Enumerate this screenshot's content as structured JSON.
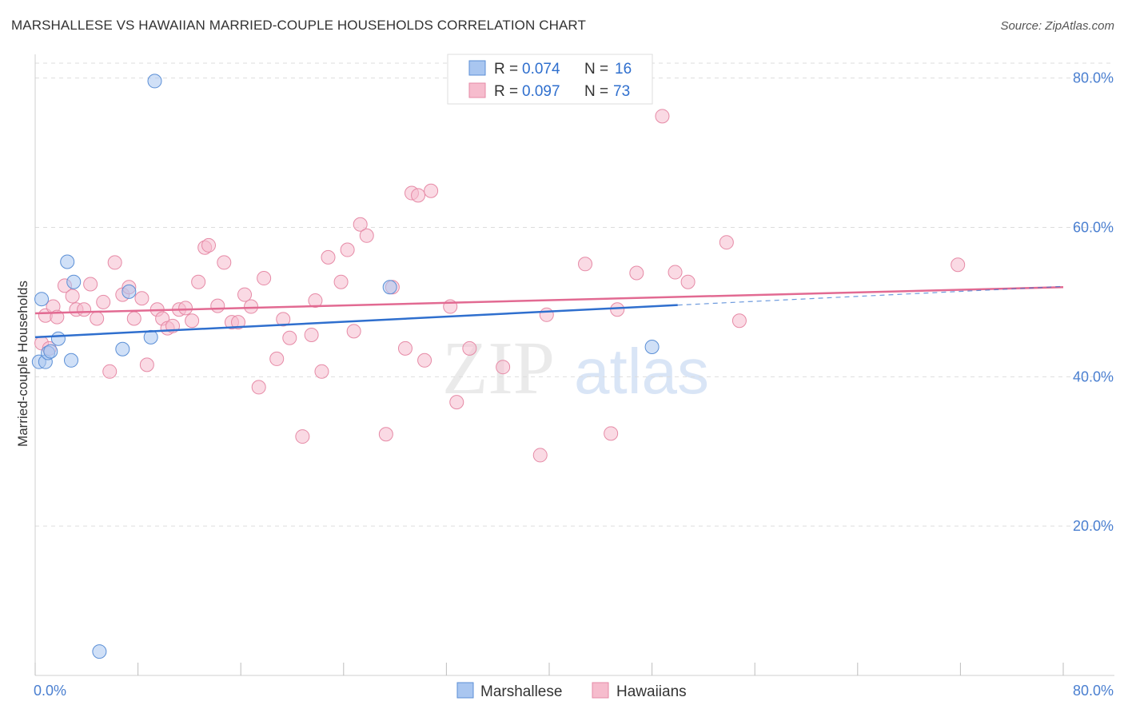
{
  "header": {
    "title": "MARSHALLESE VS HAWAIIAN MARRIED-COUPLE HOUSEHOLDS CORRELATION CHART",
    "source": "Source: ZipAtlas.com"
  },
  "watermark": {
    "zip": "ZIP",
    "atlas": "atlas"
  },
  "colors": {
    "marshallese_fill": "#a9c6f0",
    "marshallese_stroke": "#5b8fd6",
    "marshallese_line": "#2f6fce",
    "hawaiian_fill": "#f6bccd",
    "hawaiian_stroke": "#e68aa6",
    "hawaiian_line": "#e26a92",
    "tick_label": "#4a7fd0",
    "grid": "#dddddd"
  },
  "stats_legend": {
    "rows": [
      {
        "r_label": "R =",
        "r_value": "0.074",
        "n_label": "N =",
        "n_value": "16"
      },
      {
        "r_label": "R =",
        "r_value": "0.097",
        "n_label": "N =",
        "n_value": "73"
      }
    ]
  },
  "chart_data": {
    "type": "scatter",
    "title": "MARSHALLESE VS HAWAIIAN MARRIED-COUPLE HOUSEHOLDS CORRELATION CHART",
    "xlabel": "",
    "ylabel": "Married-couple Households",
    "xlim": [
      0,
      80
    ],
    "ylim": [
      0,
      82
    ],
    "x_tick_labels": [
      "0.0%",
      "80.0%"
    ],
    "y_ticks": [
      20,
      40,
      60,
      80
    ],
    "y_tick_labels": [
      "20.0%",
      "40.0%",
      "60.0%",
      "80.0%"
    ],
    "grid": true,
    "legend": [
      "Marshallese",
      "Hawaiians"
    ],
    "series": [
      {
        "name": "Marshallese",
        "r": 0.074,
        "n": 16,
        "trend": {
          "x0": 0,
          "y0": 45.3,
          "x1": 50,
          "y1": 49.6,
          "dash_to_x": 80,
          "dash_to_y": 52.1
        },
        "points": [
          [
            0.3,
            42.0
          ],
          [
            0.5,
            50.4
          ],
          [
            0.8,
            42.0
          ],
          [
            1.0,
            43.2
          ],
          [
            1.2,
            43.4
          ],
          [
            1.8,
            45.1
          ],
          [
            2.5,
            55.4
          ],
          [
            2.8,
            42.2
          ],
          [
            3.0,
            52.7
          ],
          [
            5.0,
            3.2
          ],
          [
            6.8,
            43.7
          ],
          [
            7.3,
            51.4
          ],
          [
            9.0,
            45.3
          ],
          [
            9.3,
            79.6
          ],
          [
            27.6,
            52.0
          ],
          [
            48.0,
            44.0
          ]
        ]
      },
      {
        "name": "Hawaiians",
        "r": 0.097,
        "n": 73,
        "trend": {
          "x0": 0,
          "y0": 48.5,
          "x1": 80,
          "y1": 52.0
        },
        "points": [
          [
            0.5,
            44.5
          ],
          [
            0.8,
            48.2
          ],
          [
            1.1,
            43.8
          ],
          [
            1.4,
            49.4
          ],
          [
            1.7,
            48.0
          ],
          [
            2.3,
            52.2
          ],
          [
            2.9,
            50.8
          ],
          [
            3.2,
            49.0
          ],
          [
            3.8,
            49.0
          ],
          [
            4.3,
            52.4
          ],
          [
            4.8,
            47.8
          ],
          [
            5.3,
            50.0
          ],
          [
            5.8,
            40.7
          ],
          [
            6.2,
            55.3
          ],
          [
            6.8,
            51.0
          ],
          [
            7.3,
            52.0
          ],
          [
            7.7,
            47.8
          ],
          [
            8.3,
            50.5
          ],
          [
            8.7,
            41.6
          ],
          [
            9.5,
            49.0
          ],
          [
            9.9,
            47.8
          ],
          [
            10.3,
            46.5
          ],
          [
            10.7,
            46.8
          ],
          [
            11.2,
            49.0
          ],
          [
            11.7,
            49.2
          ],
          [
            12.2,
            47.5
          ],
          [
            12.7,
            52.7
          ],
          [
            13.2,
            57.3
          ],
          [
            13.5,
            57.6
          ],
          [
            14.2,
            49.5
          ],
          [
            14.7,
            55.3
          ],
          [
            15.3,
            47.3
          ],
          [
            15.8,
            47.3
          ],
          [
            16.3,
            51.0
          ],
          [
            16.8,
            49.4
          ],
          [
            17.4,
            38.6
          ],
          [
            17.8,
            53.2
          ],
          [
            18.8,
            42.4
          ],
          [
            19.3,
            47.7
          ],
          [
            19.8,
            45.2
          ],
          [
            20.8,
            32.0
          ],
          [
            21.8,
            50.2
          ],
          [
            21.5,
            45.6
          ],
          [
            22.3,
            40.7
          ],
          [
            22.8,
            56.0
          ],
          [
            23.8,
            52.7
          ],
          [
            24.3,
            57.0
          ],
          [
            24.8,
            46.1
          ],
          [
            25.3,
            60.4
          ],
          [
            25.8,
            58.9
          ],
          [
            27.3,
            32.3
          ],
          [
            27.8,
            52.0
          ],
          [
            28.8,
            43.8
          ],
          [
            29.3,
            64.6
          ],
          [
            29.8,
            64.3
          ],
          [
            30.3,
            42.2
          ],
          [
            30.8,
            64.9
          ],
          [
            32.3,
            49.4
          ],
          [
            32.8,
            36.6
          ],
          [
            33.8,
            43.8
          ],
          [
            36.4,
            41.3
          ],
          [
            39.3,
            29.5
          ],
          [
            39.8,
            48.3
          ],
          [
            42.8,
            55.1
          ],
          [
            44.8,
            32.4
          ],
          [
            45.3,
            49.0
          ],
          [
            46.8,
            53.9
          ],
          [
            48.8,
            74.9
          ],
          [
            49.8,
            54.0
          ],
          [
            50.8,
            52.7
          ],
          [
            53.8,
            58.0
          ],
          [
            54.8,
            47.5
          ],
          [
            71.8,
            55.0
          ]
        ]
      }
    ]
  }
}
